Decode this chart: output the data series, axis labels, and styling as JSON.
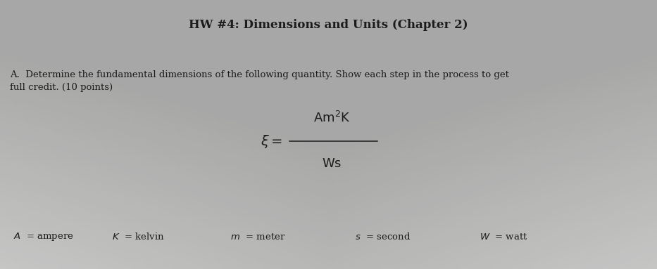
{
  "title": "HW #4: Dimensions and Units (Chapter 2)",
  "title_fontsize": 12,
  "part_label": "A.",
  "part_text": "Determine the fundamental dimensions of the following quantity. Show each step in the process to get\nfull credit. (10 points)",
  "part_fontsize": 9.5,
  "formula_lhs": "$\\xi = $",
  "formula_numerator": "$\\mathrm{A\\,m^{2}\\,K}$",
  "formula_denominator": "$\\mathrm{W\\,s}$",
  "definitions": [
    {
      "symbol": "A",
      "meaning": "= ampere"
    },
    {
      "symbol": "K",
      "meaning": "= kelvin"
    },
    {
      "symbol": "m",
      "meaning": "= meter"
    },
    {
      "symbol": "s",
      "meaning": "= second"
    },
    {
      "symbol": "W",
      "meaning": "= watt"
    }
  ],
  "def_fontsize": 9.5,
  "background_color_top": "#b0b0b0",
  "background_color_mid": "#c8c8c0",
  "background_color_bot": "#d8d8d0",
  "text_color": "#1c1c1c",
  "bg_base": "#bebebe"
}
